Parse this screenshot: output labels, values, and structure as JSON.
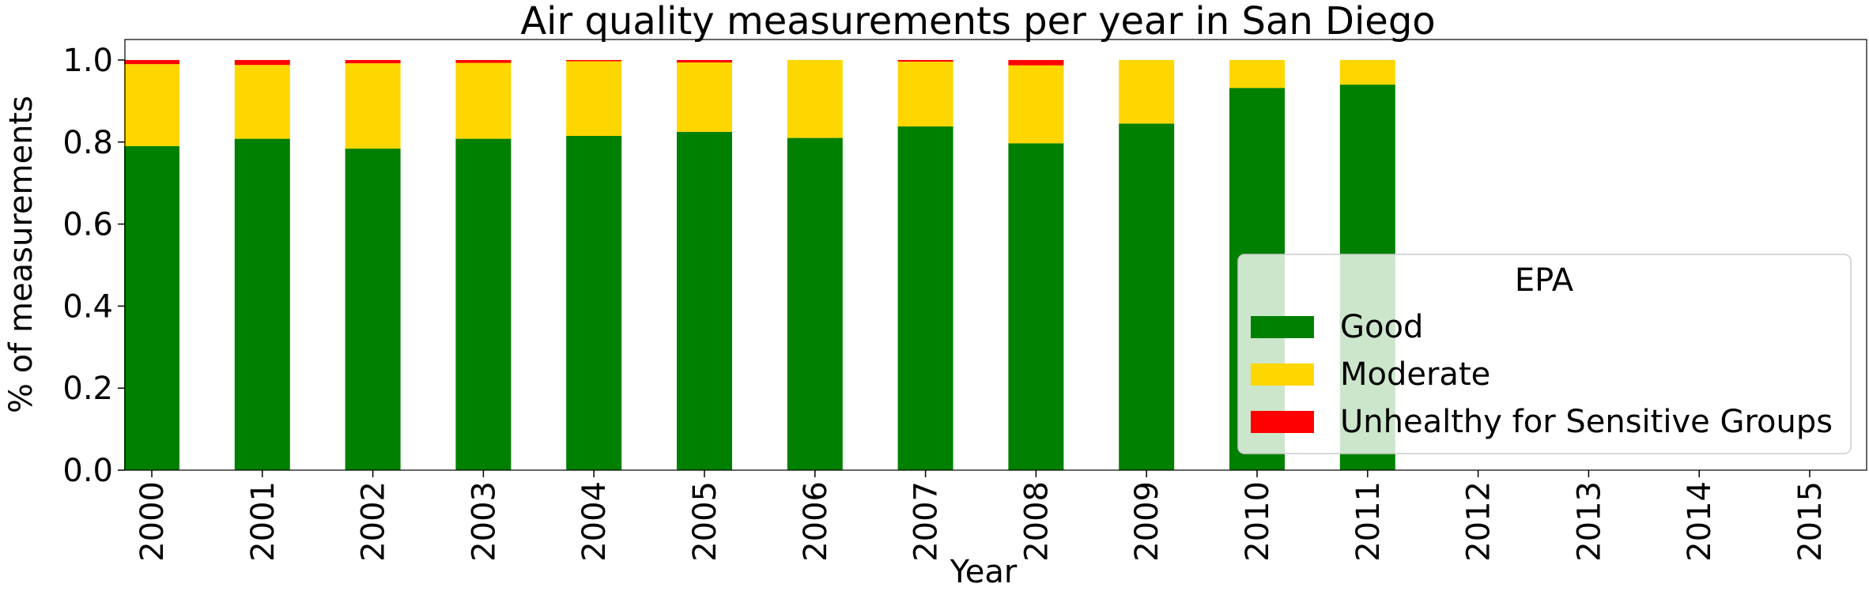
{
  "chart_data": {
    "type": "bar",
    "stacked": true,
    "title": "Air quality measurements per year in San Diego",
    "xlabel": "Year",
    "ylabel": "% of measurements",
    "ylim": [
      0,
      1.05
    ],
    "yticks": [
      "0.0",
      "0.2",
      "0.4",
      "0.6",
      "0.8",
      "1.0"
    ],
    "grid": false,
    "categories": [
      "2000",
      "2001",
      "2002",
      "2003",
      "2004",
      "2005",
      "2006",
      "2007",
      "2008",
      "2009",
      "2010",
      "2011",
      "2012",
      "2013",
      "2014",
      "2015"
    ],
    "legend": {
      "title": "EPA",
      "placement": "lower-right"
    },
    "series": [
      {
        "name": "Good",
        "color": "#008000",
        "values": [
          0.79,
          0.808,
          0.784,
          0.808,
          0.815,
          0.825,
          0.81,
          0.838,
          0.797,
          0.845,
          0.932,
          0.94,
          0,
          0,
          0,
          0
        ]
      },
      {
        "name": "Moderate",
        "color": "#FFD700",
        "values": [
          0.2,
          0.18,
          0.208,
          0.185,
          0.182,
          0.169,
          0.19,
          0.158,
          0.19,
          0.155,
          0.068,
          0.06,
          0,
          0,
          0,
          0
        ]
      },
      {
        "name": "Unhealthy for Sensitive Groups",
        "color": "#FF0000",
        "values": [
          0.01,
          0.012,
          0.008,
          0.007,
          0.003,
          0.006,
          0,
          0.004,
          0.013,
          0,
          0,
          0,
          0,
          0,
          0,
          0
        ]
      }
    ]
  }
}
